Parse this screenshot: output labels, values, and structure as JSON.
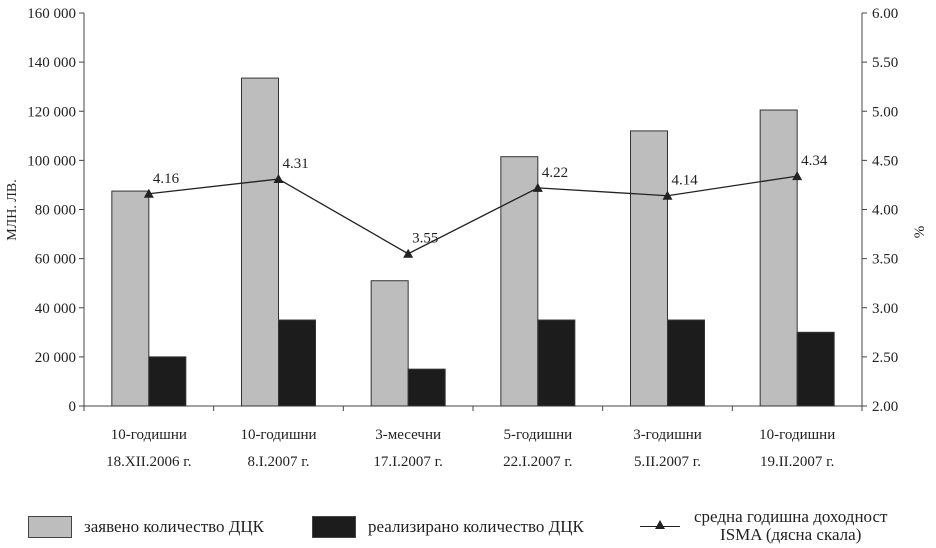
{
  "chart_data": {
    "type": "bar",
    "categories": [
      [
        "10-годишни",
        "18.XII.2006 г."
      ],
      [
        "10-годишни",
        "8.I.2007 г."
      ],
      [
        "3-месечни",
        "17.I.2007 г."
      ],
      [
        "5-годишни",
        "22.I.2007 г."
      ],
      [
        "3-годишни",
        "5.II.2007 г."
      ],
      [
        "10-годишни",
        "19.II.2007 г."
      ]
    ],
    "series": [
      {
        "name": "заявено количество ДЦК",
        "axis": "left",
        "kind": "bar",
        "color": "#bdbdbd",
        "values": [
          87500,
          133500,
          51000,
          101500,
          112000,
          120500
        ]
      },
      {
        "name": "реализирано количество ДЦК",
        "axis": "left",
        "kind": "bar",
        "color": "#1c1c1c",
        "values": [
          20000,
          35000,
          15000,
          35000,
          35000,
          30000
        ]
      },
      {
        "name": [
          "средна годишна доходност",
          "ISMA (дясна скала)"
        ],
        "axis": "right",
        "kind": "line",
        "color": "#222222",
        "values": [
          4.16,
          4.31,
          3.55,
          4.22,
          4.14,
          4.34
        ],
        "labels": [
          "4.16",
          "4.31",
          "3.55",
          "4.22",
          "4.14",
          "4.34"
        ]
      }
    ],
    "ylabel": "МЛН. ЛВ.",
    "y2label": "%",
    "ylim": [
      0,
      160000
    ],
    "y2lim": [
      2.0,
      6.0
    ],
    "yticks": [
      "0",
      "20 000",
      "40 000",
      "60 000",
      "80 000",
      "100 000",
      "120 000",
      "140 000",
      "160 000"
    ],
    "y2ticks": [
      "2.00",
      "2.50",
      "3.00",
      "3.50",
      "4.00",
      "4.50",
      "5.00",
      "5.50",
      "6.00"
    ],
    "grid": false,
    "legend_position": "bottom"
  }
}
